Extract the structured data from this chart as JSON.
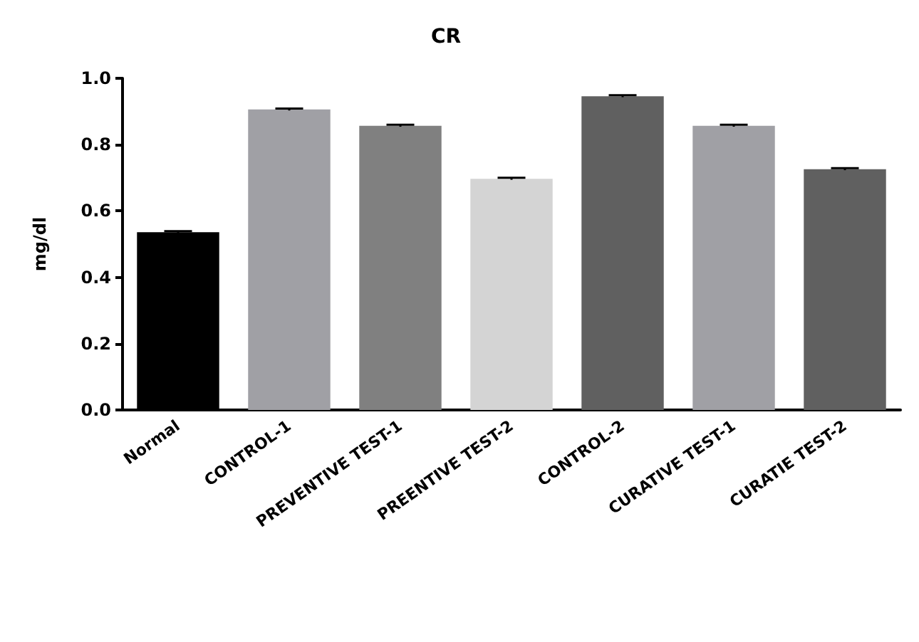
{
  "chart_data": {
    "type": "bar",
    "title": "CR",
    "ylabel": "mg/dl",
    "categories": [
      "Normal",
      "CONTROL-1",
      "PREVENTIVE TEST-1",
      "PREENTIVE TEST-2",
      "CONTROL-2",
      "CURATIVE TEST-1",
      "CURATIE TEST-2"
    ],
    "values": [
      0.536,
      0.906,
      0.857,
      0.697,
      0.946,
      0.857,
      0.726
    ],
    "errors": [
      0.003,
      0.003,
      0.003,
      0.003,
      0.003,
      0.003,
      0.003
    ],
    "colors": [
      "#000000",
      "#a0a0a5",
      "#808080",
      "#d4d4d4",
      "#606060",
      "#a0a0a5",
      "#606060"
    ],
    "ylim": [
      0,
      1
    ],
    "yticks": [
      {
        "value": 0,
        "label": "0.0"
      },
      0.2,
      0.4,
      0.6,
      0.8,
      {
        "value": 1,
        "label": "1.0"
      }
    ],
    "grid": false
  }
}
